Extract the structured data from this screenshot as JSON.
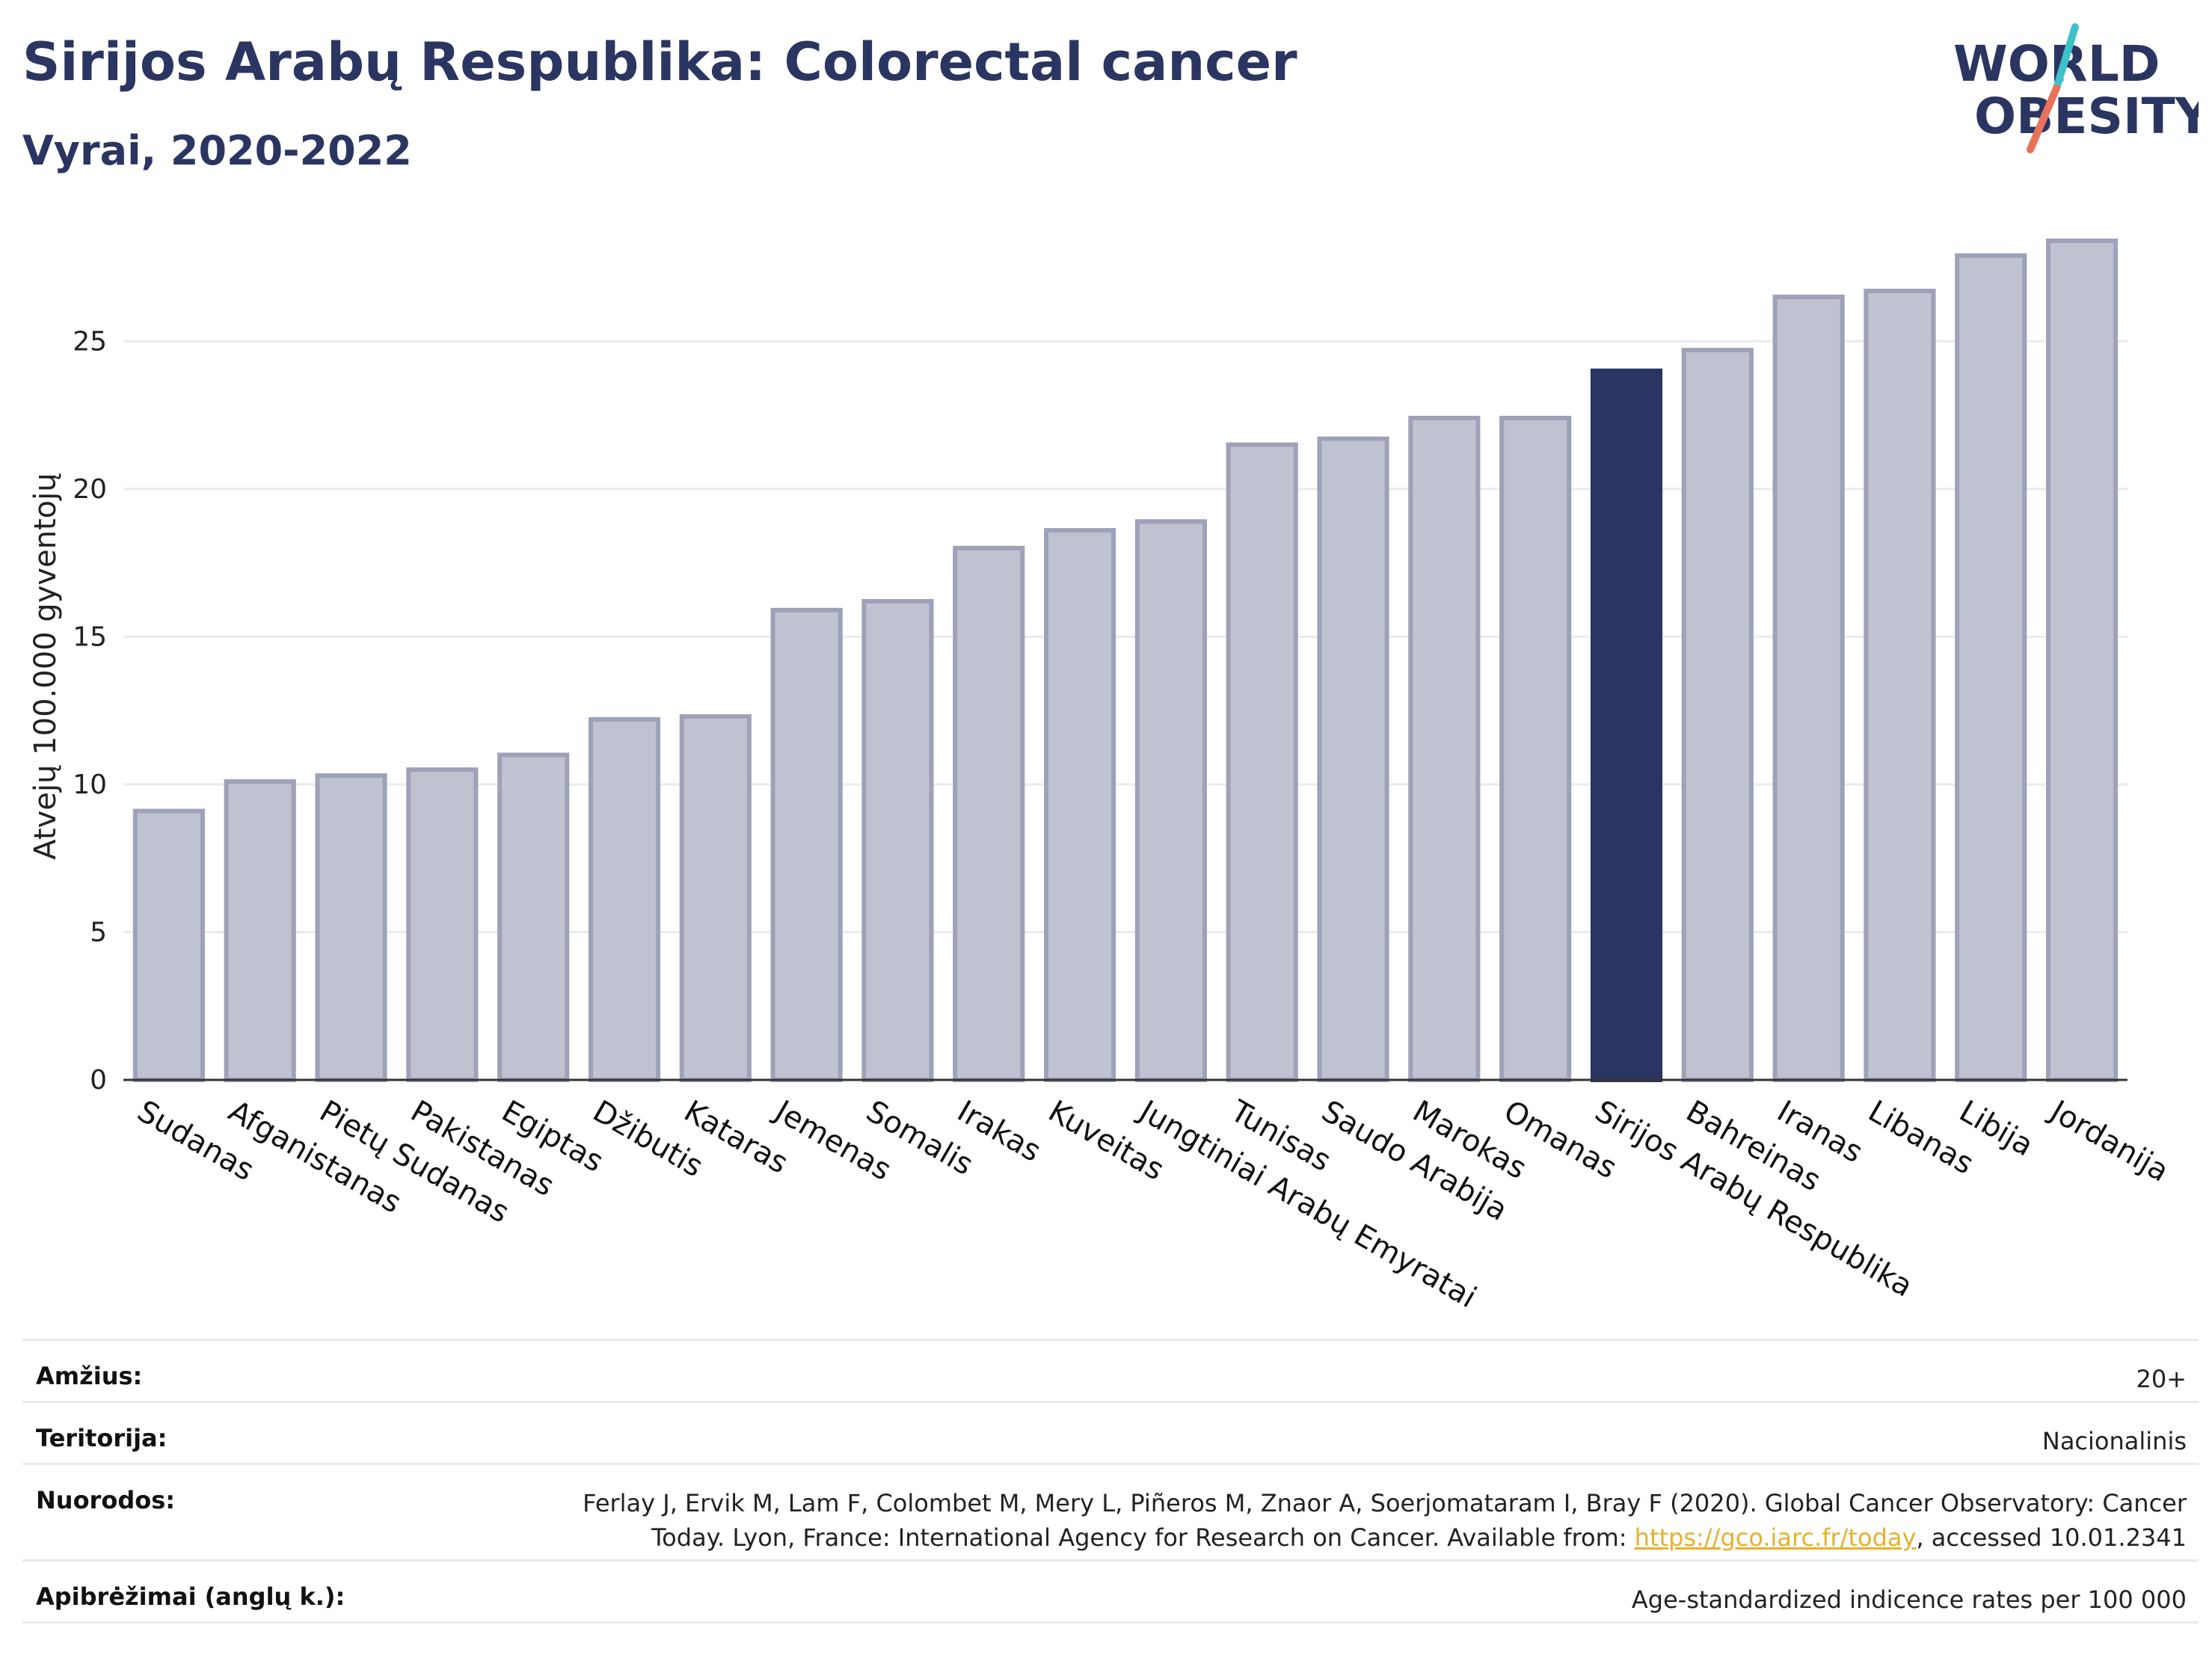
{
  "header": {
    "title": "Sirijos Arabų Respublika: Colorectal cancer",
    "subtitle": "Vyrai, 2020-2022"
  },
  "logo": {
    "line1": "WORLD",
    "line2": "OBESITY",
    "icon": "world-obesity-logo",
    "colors": {
      "navy": "#2b3561",
      "teal": "#3ec1c9",
      "coral": "#e8735a"
    }
  },
  "chart_data": {
    "type": "bar",
    "title": "",
    "xlabel": "",
    "ylabel": "Atvejų 100.000 gyventojų",
    "ylim": [
      0,
      28.5
    ],
    "yticks": [
      0,
      5,
      10,
      15,
      20,
      25
    ],
    "grid": true,
    "highlight": "Sirijos Arabų Respublika",
    "colors": {
      "bar": "#bfc2d0",
      "bar_edge": "#9ea2b8",
      "highlight": "#2b3561"
    },
    "categories": [
      "Sudanas",
      "Afganistanas",
      "Pietų Sudanas",
      "Pakistanas",
      "Egiptas",
      "Džibutis",
      "Kataras",
      "Jemenas",
      "Somalis",
      "Irakas",
      "Kuveitas",
      "Jungtiniai Arabų Emyratai",
      "Tunisas",
      "Saudo Arabija",
      "Marokas",
      "Omanas",
      "Sirijos Arabų Respublika",
      "Bahreinas",
      "Iranas",
      "Libanas",
      "Libija",
      "Jordanija"
    ],
    "values": [
      9.1,
      10.1,
      10.3,
      10.5,
      11.0,
      12.2,
      12.3,
      15.9,
      16.2,
      18.0,
      18.6,
      18.9,
      21.5,
      21.7,
      22.4,
      22.4,
      24.0,
      24.7,
      26.5,
      26.7,
      27.9,
      28.4
    ]
  },
  "meta": {
    "age_label": "Amžius:",
    "age_value": "20+",
    "territory_label": "Teritorija:",
    "territory_value": "Nacionalinis",
    "refs_label": "Nuorodos:",
    "refs_line1": "Ferlay J, Ervik M, Lam F, Colombet M, Mery L, Piñeros M, Znaor A, Soerjomataram I, Bray F (2020). Global Cancer Observatory: Cancer",
    "refs_line2_pre": "Today. Lyon, France: International Agency for Research on Cancer. Available from: ",
    "refs_link": "https://gco.iarc.fr/today",
    "refs_line2_post": ", accessed 10.01.2341",
    "defs_label": "Apibrėžimai (anglų k.):",
    "defs_value": "Age-standardized indicence rates per 100 000"
  }
}
